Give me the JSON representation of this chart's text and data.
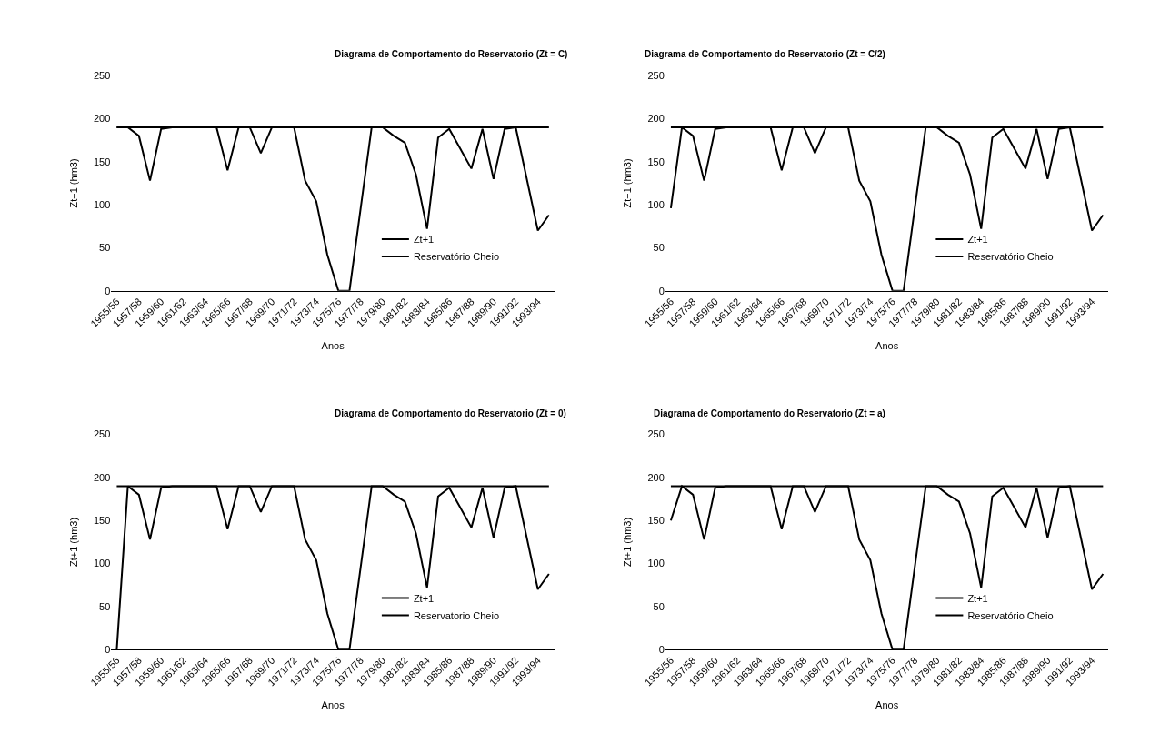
{
  "chart_data": [
    {
      "type": "line",
      "title": "Diagrama de Comportamento do Reservatorio (Zt = C)",
      "xlabel": "Anos",
      "ylabel": "Zt+1 (hm3)",
      "categories": [
        "1955/56",
        null,
        "1957/58",
        null,
        "1959/60",
        null,
        "1961/62",
        null,
        "1963/64",
        null,
        "1965/66",
        null,
        "1967/68",
        null,
        "1969/70",
        null,
        "1971/72",
        null,
        "1973/74",
        null,
        "1975/76",
        null,
        "1977/78",
        null,
        "1979/80",
        null,
        "1981/82",
        null,
        "1983/84",
        null,
        "1985/86",
        null,
        "1987/88",
        null,
        "1989/90",
        null,
        "1991/92",
        null,
        "1993/94",
        null
      ],
      "ylim": [
        0,
        250
      ],
      "yticks": [
        0,
        50,
        100,
        150,
        200,
        250
      ],
      "legend": "right",
      "marker": "none",
      "line_style": "solid",
      "series": [
        {
          "name": "Zt+1",
          "color": "#000000",
          "values": [
            190,
            190,
            180,
            128,
            188,
            190,
            190,
            190,
            190,
            190,
            140,
            190,
            190,
            160,
            190,
            190,
            190,
            128,
            104,
            42,
            0,
            0,
            95,
            190,
            190,
            180,
            172,
            135,
            72,
            178,
            188,
            165,
            142,
            188,
            130,
            188,
            190,
            130,
            70,
            88
          ]
        },
        {
          "name": "Reservatório Cheio",
          "color": "#000000",
          "values": [
            190,
            190,
            190,
            190,
            190,
            190,
            190,
            190,
            190,
            190,
            190,
            190,
            190,
            190,
            190,
            190,
            190,
            190,
            190,
            190,
            190,
            190,
            190,
            190,
            190,
            190,
            190,
            190,
            190,
            190,
            190,
            190,
            190,
            190,
            190,
            190,
            190,
            190,
            190,
            190
          ]
        }
      ]
    },
    {
      "type": "line",
      "title": "Diagrama de Comportamento do Reservatorio (Zt = C/2)",
      "xlabel": "Anos",
      "ylabel": "Zt+1 (hm3)",
      "categories": [
        "1955/56",
        null,
        "1957/58",
        null,
        "1959/60",
        null,
        "1961/62",
        null,
        "1963/64",
        null,
        "1965/66",
        null,
        "1967/68",
        null,
        "1969/70",
        null,
        "1971/72",
        null,
        "1973/74",
        null,
        "1975/76",
        null,
        "1977/78",
        null,
        "1979/80",
        null,
        "1981/82",
        null,
        "1983/84",
        null,
        "1985/86",
        null,
        "1987/88",
        null,
        "1989/90",
        null,
        "1991/92",
        null,
        "1993/94",
        null
      ],
      "ylim": [
        0,
        250
      ],
      "yticks": [
        0,
        50,
        100,
        150,
        200,
        250
      ],
      "legend": "right",
      "marker": "none",
      "line_style": "solid",
      "series": [
        {
          "name": "Zt+1",
          "color": "#000000",
          "values": [
            96,
            190,
            180,
            128,
            188,
            190,
            190,
            190,
            190,
            190,
            140,
            190,
            190,
            160,
            190,
            190,
            190,
            128,
            104,
            42,
            0,
            0,
            95,
            190,
            190,
            180,
            172,
            135,
            72,
            178,
            188,
            165,
            142,
            188,
            130,
            188,
            190,
            130,
            70,
            88
          ]
        },
        {
          "name": "Reservatório Cheio",
          "color": "#000000",
          "values": [
            190,
            190,
            190,
            190,
            190,
            190,
            190,
            190,
            190,
            190,
            190,
            190,
            190,
            190,
            190,
            190,
            190,
            190,
            190,
            190,
            190,
            190,
            190,
            190,
            190,
            190,
            190,
            190,
            190,
            190,
            190,
            190,
            190,
            190,
            190,
            190,
            190,
            190,
            190,
            190
          ]
        }
      ]
    },
    {
      "type": "line",
      "title": "Diagrama de Comportamento do Reservatorio (Zt = 0)",
      "xlabel": "Anos",
      "ylabel": "Zt+1 (hm3)",
      "categories": [
        "1955/56",
        null,
        "1957/58",
        null,
        "1959/60",
        null,
        "1961/62",
        null,
        "1963/64",
        null,
        "1965/66",
        null,
        "1967/68",
        null,
        "1969/70",
        null,
        "1971/72",
        null,
        "1973/74",
        null,
        "1975/76",
        null,
        "1977/78",
        null,
        "1979/80",
        null,
        "1981/82",
        null,
        "1983/84",
        null,
        "1985/86",
        null,
        "1987/88",
        null,
        "1989/90",
        null,
        "1991/92",
        null,
        "1993/94",
        null
      ],
      "ylim": [
        0,
        250
      ],
      "yticks": [
        0,
        50,
        100,
        150,
        200,
        250
      ],
      "legend": "right",
      "marker": "none",
      "line_style": "solid",
      "series": [
        {
          "name": "Zt+1",
          "color": "#000000",
          "values": [
            0,
            190,
            180,
            128,
            188,
            190,
            190,
            190,
            190,
            190,
            140,
            190,
            190,
            160,
            190,
            190,
            190,
            128,
            104,
            42,
            0,
            0,
            95,
            190,
            190,
            180,
            172,
            135,
            72,
            178,
            188,
            165,
            142,
            188,
            130,
            188,
            190,
            130,
            70,
            88
          ]
        },
        {
          "name": "Reservatorio Cheio",
          "color": "#000000",
          "values": [
            190,
            190,
            190,
            190,
            190,
            190,
            190,
            190,
            190,
            190,
            190,
            190,
            190,
            190,
            190,
            190,
            190,
            190,
            190,
            190,
            190,
            190,
            190,
            190,
            190,
            190,
            190,
            190,
            190,
            190,
            190,
            190,
            190,
            190,
            190,
            190,
            190,
            190,
            190,
            190
          ]
        }
      ]
    },
    {
      "type": "line",
      "title": "Diagrama de Comportamento do Reservatorio (Zt = a)",
      "xlabel": "Anos",
      "ylabel": "Zt+1 (hm3)",
      "categories": [
        "1955/56",
        null,
        "1957/58",
        null,
        "1959/60",
        null,
        "1961/62",
        null,
        "1963/64",
        null,
        "1965/66",
        null,
        "1967/68",
        null,
        "1969/70",
        null,
        "1971/72",
        null,
        "1973/74",
        null,
        "1975/76",
        null,
        "1977/78",
        null,
        "1979/80",
        null,
        "1981/82",
        null,
        "1983/84",
        null,
        "1985/86",
        null,
        "1987/88",
        null,
        "1989/90",
        null,
        "1991/92",
        null,
        "1993/94",
        null
      ],
      "ylim": [
        0,
        250
      ],
      "yticks": [
        0,
        50,
        100,
        150,
        200,
        250
      ],
      "legend": "right",
      "marker": "none",
      "line_style": "solid",
      "series": [
        {
          "name": "Zt+1",
          "color": "#000000",
          "values": [
            150,
            190,
            180,
            128,
            188,
            190,
            190,
            190,
            190,
            190,
            140,
            190,
            190,
            160,
            190,
            190,
            190,
            128,
            104,
            42,
            0,
            0,
            95,
            190,
            190,
            180,
            172,
            135,
            72,
            178,
            188,
            165,
            142,
            188,
            130,
            188,
            190,
            130,
            70,
            88
          ]
        },
        {
          "name": "Reservatório Cheio",
          "color": "#000000",
          "values": [
            190,
            190,
            190,
            190,
            190,
            190,
            190,
            190,
            190,
            190,
            190,
            190,
            190,
            190,
            190,
            190,
            190,
            190,
            190,
            190,
            190,
            190,
            190,
            190,
            190,
            190,
            190,
            190,
            190,
            190,
            190,
            190,
            190,
            190,
            190,
            190,
            190,
            190,
            190,
            190
          ]
        }
      ]
    }
  ]
}
